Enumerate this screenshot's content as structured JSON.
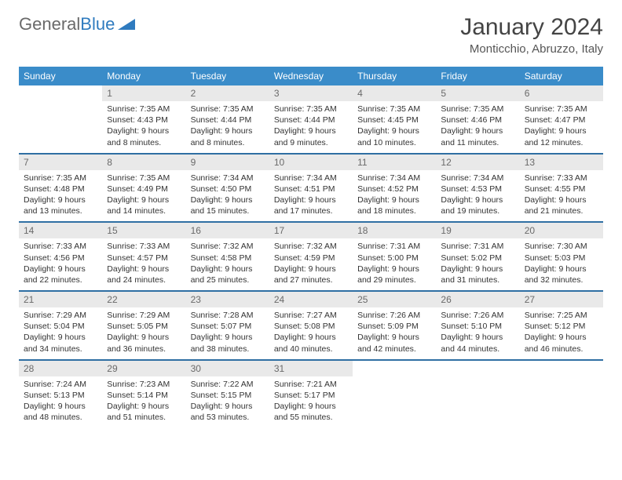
{
  "logo": {
    "text1": "General",
    "text2": "Blue"
  },
  "title": "January 2024",
  "location": "Monticchio, Abruzzo, Italy",
  "colors": {
    "header_bg": "#3a8cc9",
    "row_divider": "#2f6fa3",
    "daynum_bg": "#e9e9e9",
    "text": "#333333",
    "logo_gray": "#6a6a6a",
    "logo_blue": "#2f7bbf"
  },
  "day_names": [
    "Sunday",
    "Monday",
    "Tuesday",
    "Wednesday",
    "Thursday",
    "Friday",
    "Saturday"
  ],
  "weeks": [
    [
      {
        "n": "",
        "sunrise": "",
        "sunset": "",
        "daylight1": "",
        "daylight2": ""
      },
      {
        "n": "1",
        "sunrise": "Sunrise: 7:35 AM",
        "sunset": "Sunset: 4:43 PM",
        "daylight1": "Daylight: 9 hours",
        "daylight2": "and 8 minutes."
      },
      {
        "n": "2",
        "sunrise": "Sunrise: 7:35 AM",
        "sunset": "Sunset: 4:44 PM",
        "daylight1": "Daylight: 9 hours",
        "daylight2": "and 8 minutes."
      },
      {
        "n": "3",
        "sunrise": "Sunrise: 7:35 AM",
        "sunset": "Sunset: 4:44 PM",
        "daylight1": "Daylight: 9 hours",
        "daylight2": "and 9 minutes."
      },
      {
        "n": "4",
        "sunrise": "Sunrise: 7:35 AM",
        "sunset": "Sunset: 4:45 PM",
        "daylight1": "Daylight: 9 hours",
        "daylight2": "and 10 minutes."
      },
      {
        "n": "5",
        "sunrise": "Sunrise: 7:35 AM",
        "sunset": "Sunset: 4:46 PM",
        "daylight1": "Daylight: 9 hours",
        "daylight2": "and 11 minutes."
      },
      {
        "n": "6",
        "sunrise": "Sunrise: 7:35 AM",
        "sunset": "Sunset: 4:47 PM",
        "daylight1": "Daylight: 9 hours",
        "daylight2": "and 12 minutes."
      }
    ],
    [
      {
        "n": "7",
        "sunrise": "Sunrise: 7:35 AM",
        "sunset": "Sunset: 4:48 PM",
        "daylight1": "Daylight: 9 hours",
        "daylight2": "and 13 minutes."
      },
      {
        "n": "8",
        "sunrise": "Sunrise: 7:35 AM",
        "sunset": "Sunset: 4:49 PM",
        "daylight1": "Daylight: 9 hours",
        "daylight2": "and 14 minutes."
      },
      {
        "n": "9",
        "sunrise": "Sunrise: 7:34 AM",
        "sunset": "Sunset: 4:50 PM",
        "daylight1": "Daylight: 9 hours",
        "daylight2": "and 15 minutes."
      },
      {
        "n": "10",
        "sunrise": "Sunrise: 7:34 AM",
        "sunset": "Sunset: 4:51 PM",
        "daylight1": "Daylight: 9 hours",
        "daylight2": "and 17 minutes."
      },
      {
        "n": "11",
        "sunrise": "Sunrise: 7:34 AM",
        "sunset": "Sunset: 4:52 PM",
        "daylight1": "Daylight: 9 hours",
        "daylight2": "and 18 minutes."
      },
      {
        "n": "12",
        "sunrise": "Sunrise: 7:34 AM",
        "sunset": "Sunset: 4:53 PM",
        "daylight1": "Daylight: 9 hours",
        "daylight2": "and 19 minutes."
      },
      {
        "n": "13",
        "sunrise": "Sunrise: 7:33 AM",
        "sunset": "Sunset: 4:55 PM",
        "daylight1": "Daylight: 9 hours",
        "daylight2": "and 21 minutes."
      }
    ],
    [
      {
        "n": "14",
        "sunrise": "Sunrise: 7:33 AM",
        "sunset": "Sunset: 4:56 PM",
        "daylight1": "Daylight: 9 hours",
        "daylight2": "and 22 minutes."
      },
      {
        "n": "15",
        "sunrise": "Sunrise: 7:33 AM",
        "sunset": "Sunset: 4:57 PM",
        "daylight1": "Daylight: 9 hours",
        "daylight2": "and 24 minutes."
      },
      {
        "n": "16",
        "sunrise": "Sunrise: 7:32 AM",
        "sunset": "Sunset: 4:58 PM",
        "daylight1": "Daylight: 9 hours",
        "daylight2": "and 25 minutes."
      },
      {
        "n": "17",
        "sunrise": "Sunrise: 7:32 AM",
        "sunset": "Sunset: 4:59 PM",
        "daylight1": "Daylight: 9 hours",
        "daylight2": "and 27 minutes."
      },
      {
        "n": "18",
        "sunrise": "Sunrise: 7:31 AM",
        "sunset": "Sunset: 5:00 PM",
        "daylight1": "Daylight: 9 hours",
        "daylight2": "and 29 minutes."
      },
      {
        "n": "19",
        "sunrise": "Sunrise: 7:31 AM",
        "sunset": "Sunset: 5:02 PM",
        "daylight1": "Daylight: 9 hours",
        "daylight2": "and 31 minutes."
      },
      {
        "n": "20",
        "sunrise": "Sunrise: 7:30 AM",
        "sunset": "Sunset: 5:03 PM",
        "daylight1": "Daylight: 9 hours",
        "daylight2": "and 32 minutes."
      }
    ],
    [
      {
        "n": "21",
        "sunrise": "Sunrise: 7:29 AM",
        "sunset": "Sunset: 5:04 PM",
        "daylight1": "Daylight: 9 hours",
        "daylight2": "and 34 minutes."
      },
      {
        "n": "22",
        "sunrise": "Sunrise: 7:29 AM",
        "sunset": "Sunset: 5:05 PM",
        "daylight1": "Daylight: 9 hours",
        "daylight2": "and 36 minutes."
      },
      {
        "n": "23",
        "sunrise": "Sunrise: 7:28 AM",
        "sunset": "Sunset: 5:07 PM",
        "daylight1": "Daylight: 9 hours",
        "daylight2": "and 38 minutes."
      },
      {
        "n": "24",
        "sunrise": "Sunrise: 7:27 AM",
        "sunset": "Sunset: 5:08 PM",
        "daylight1": "Daylight: 9 hours",
        "daylight2": "and 40 minutes."
      },
      {
        "n": "25",
        "sunrise": "Sunrise: 7:26 AM",
        "sunset": "Sunset: 5:09 PM",
        "daylight1": "Daylight: 9 hours",
        "daylight2": "and 42 minutes."
      },
      {
        "n": "26",
        "sunrise": "Sunrise: 7:26 AM",
        "sunset": "Sunset: 5:10 PM",
        "daylight1": "Daylight: 9 hours",
        "daylight2": "and 44 minutes."
      },
      {
        "n": "27",
        "sunrise": "Sunrise: 7:25 AM",
        "sunset": "Sunset: 5:12 PM",
        "daylight1": "Daylight: 9 hours",
        "daylight2": "and 46 minutes."
      }
    ],
    [
      {
        "n": "28",
        "sunrise": "Sunrise: 7:24 AM",
        "sunset": "Sunset: 5:13 PM",
        "daylight1": "Daylight: 9 hours",
        "daylight2": "and 48 minutes."
      },
      {
        "n": "29",
        "sunrise": "Sunrise: 7:23 AM",
        "sunset": "Sunset: 5:14 PM",
        "daylight1": "Daylight: 9 hours",
        "daylight2": "and 51 minutes."
      },
      {
        "n": "30",
        "sunrise": "Sunrise: 7:22 AM",
        "sunset": "Sunset: 5:15 PM",
        "daylight1": "Daylight: 9 hours",
        "daylight2": "and 53 minutes."
      },
      {
        "n": "31",
        "sunrise": "Sunrise: 7:21 AM",
        "sunset": "Sunset: 5:17 PM",
        "daylight1": "Daylight: 9 hours",
        "daylight2": "and 55 minutes."
      },
      {
        "n": "",
        "sunrise": "",
        "sunset": "",
        "daylight1": "",
        "daylight2": ""
      },
      {
        "n": "",
        "sunrise": "",
        "sunset": "",
        "daylight1": "",
        "daylight2": ""
      },
      {
        "n": "",
        "sunrise": "",
        "sunset": "",
        "daylight1": "",
        "daylight2": ""
      }
    ]
  ]
}
